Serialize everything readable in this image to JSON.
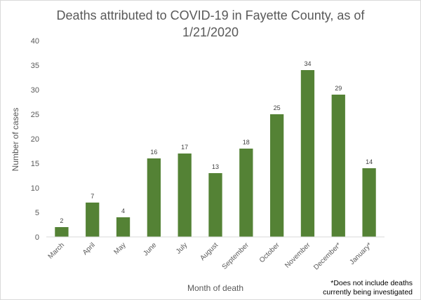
{
  "chart_data": {
    "type": "bar",
    "title": "Deaths attributed to COVID-19 in Fayette County, as of 1/21/2020",
    "title_lines": [
      "Deaths attributed to COVID-19 in Fayette County, as of",
      "1/21/2020"
    ],
    "xlabel": "Month of death",
    "ylabel": "Number of cases",
    "categories": [
      "March",
      "April",
      "May",
      "June",
      "July",
      "August",
      "September",
      "October",
      "November",
      "December*",
      "January*"
    ],
    "values": [
      2,
      7,
      4,
      16,
      17,
      13,
      18,
      25,
      34,
      29,
      14
    ],
    "ylim": [
      0,
      40
    ],
    "yticks": [
      0,
      5,
      10,
      15,
      20,
      25,
      30,
      35,
      40
    ],
    "grid": false,
    "legend": "none",
    "bar_color": "#548235",
    "footnote_lines": [
      "*Does not include deaths",
      "currently being investigated"
    ]
  }
}
